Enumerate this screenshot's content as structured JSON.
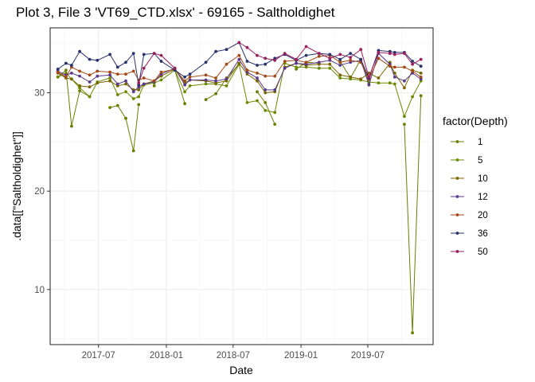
{
  "chart_data": {
    "type": "line",
    "title": "Plot 3, File 3 'VT69_CTD.xlsx' - 69165  -  Saltholdighet",
    "xlabel": "Date",
    "ylabel": ".data[[\"Saltholdighet\"]]",
    "x_ticks": [
      "2017-07",
      "2018-01",
      "2018-07",
      "2019-01",
      "2019-07"
    ],
    "y_ticks": [
      10,
      20,
      30
    ],
    "xlim": [
      "2017-02-20",
      "2019-12-25"
    ],
    "ylim": [
      4.4,
      36.6
    ],
    "grid": true,
    "legend": {
      "title": "factor(Depth)",
      "position": "right"
    },
    "dates": [
      "2017-03-13",
      "2017-04-04",
      "2017-04-19",
      "2017-05-11",
      "2017-06-07",
      "2017-06-28",
      "2017-08-01",
      "2017-08-22",
      "2017-09-13",
      "2017-10-04",
      "2017-10-18",
      "2017-11-01",
      "2017-11-29",
      "2017-12-18",
      "2018-01-24",
      "2018-02-20",
      "2018-03-06",
      "2018-04-18",
      "2018-05-15",
      "2018-06-13",
      "2018-07-17",
      "2018-08-08",
      "2018-09-04",
      "2018-09-26",
      "2018-10-22",
      "2018-11-18",
      "2018-12-19",
      "2019-01-15",
      "2019-02-19",
      "2019-03-20",
      "2019-04-17",
      "2019-05-15",
      "2019-06-12",
      "2019-07-04",
      "2019-07-30",
      "2019-08-30",
      "2019-09-12",
      "2019-10-08",
      "2019-10-30",
      "2019-11-22"
    ],
    "series": [
      {
        "name": "1",
        "color": "#6b7d00",
        "values": [
          31.6,
          32.3,
          26.6,
          30.2,
          29.6,
          null,
          28.5,
          28.7,
          27.4,
          24.1,
          28.8,
          null,
          30.7,
          null,
          32.3,
          28.9,
          null,
          29.3,
          29.9,
          31.5,
          32.9,
          null,
          30.1,
          29.0,
          26.8,
          null,
          32.4,
          33.1,
          33.0,
          null,
          33.2,
          31.5,
          33.4,
          31.0,
          null,
          33.1,
          null,
          26.8,
          5.6,
          29.7
        ]
      },
      {
        "name": "5",
        "color": "#6b8a00",
        "values": [
          31.6,
          32.0,
          31.4,
          30.5,
          29.6,
          31.1,
          31.5,
          29.8,
          30.1,
          29.4,
          29.6,
          30.8,
          31.0,
          31.3,
          32.3,
          30.1,
          30.7,
          30.9,
          30.9,
          30.7,
          32.9,
          29.0,
          29.2,
          28.2,
          28.0,
          33.0,
          32.6,
          32.6,
          32.5,
          32.5,
          31.5,
          31.4,
          31.3,
          31.1,
          31.0,
          31.0,
          30.9,
          27.6,
          29.6,
          31.2
        ]
      },
      {
        "name": "10",
        "color": "#7a6500",
        "values": [
          32.0,
          31.5,
          31.4,
          30.7,
          30.6,
          31.0,
          31.2,
          30.7,
          30.9,
          30.3,
          30.3,
          30.9,
          31.2,
          31.7,
          32.4,
          31.0,
          31.3,
          31.2,
          31.0,
          31.2,
          33.0,
          31.9,
          31.2,
          30.0,
          30.1,
          32.6,
          33.0,
          32.8,
          32.9,
          32.9,
          31.8,
          31.6,
          31.4,
          32.0,
          31.5,
          33.0,
          32.0,
          30.5,
          32.3,
          32.0
        ]
      },
      {
        "name": "12",
        "color": "#5a3a8a",
        "values": [
          32.2,
          31.8,
          32.0,
          31.7,
          31.1,
          31.7,
          31.8,
          30.9,
          31.2,
          30.1,
          30.6,
          30.9,
          31.1,
          31.9,
          32.5,
          30.8,
          31.3,
          31.3,
          31.2,
          31.4,
          33.4,
          32.1,
          31.5,
          30.3,
          30.3,
          32.5,
          33.0,
          32.9,
          33.1,
          33.3,
          32.8,
          33.1,
          33.3,
          30.8,
          34.0,
          32.9,
          31.6,
          31.2,
          32.0,
          31.4
        ]
      },
      {
        "name": "20",
        "color": "#a34a18",
        "values": [
          32.1,
          31.6,
          32.6,
          32.2,
          31.8,
          32.2,
          32.1,
          31.9,
          31.9,
          32.2,
          31.3,
          31.5,
          31.2,
          32.1,
          32.4,
          31.2,
          31.6,
          31.8,
          31.5,
          32.9,
          33.8,
          32.3,
          32.0,
          31.7,
          31.7,
          33.2,
          33.3,
          33.1,
          33.7,
          33.8,
          33.1,
          33.3,
          33.1,
          31.4,
          33.5,
          32.7,
          32.6,
          32.6,
          32.2,
          31.6
        ]
      },
      {
        "name": "36",
        "color": "#28306e",
        "values": [
          32.4,
          33.0,
          32.8,
          34.2,
          33.4,
          33.3,
          33.9,
          32.6,
          33.1,
          34.0,
          30.8,
          33.9,
          34.0,
          33.2,
          32.3,
          31.6,
          31.9,
          33.1,
          34.2,
          34.4,
          35.1,
          33.2,
          32.8,
          32.9,
          33.5,
          33.9,
          33.3,
          33.8,
          34.0,
          33.9,
          33.4,
          34.0,
          33.4,
          31.5,
          34.3,
          34.2,
          34.1,
          34.1,
          33.2,
          32.7
        ]
      },
      {
        "name": "50",
        "color": "#9a1f5e",
        "values": [
          null,
          null,
          null,
          null,
          null,
          null,
          null,
          null,
          null,
          null,
          31.0,
          32.5,
          34.0,
          33.8,
          32.5,
          null,
          null,
          null,
          null,
          null,
          35.1,
          34.6,
          33.8,
          33.5,
          33.3,
          34.0,
          33.4,
          34.7,
          34.0,
          33.5,
          33.9,
          33.6,
          34.4,
          31.6,
          34.1,
          34.0,
          33.9,
          34.0,
          32.9,
          33.4
        ]
      }
    ]
  }
}
